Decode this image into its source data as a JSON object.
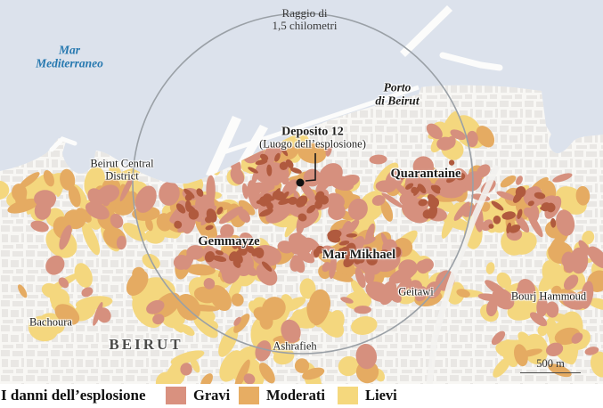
{
  "map": {
    "labels": {
      "sea_line1": "Mar",
      "sea_line2": "Mediterraneo",
      "radius_line1": "Raggio di",
      "radius_line2": "1,5 chilometri",
      "port_line1": "Porto",
      "port_line2": "di Beirut",
      "deposito_title": "Deposito 12",
      "deposito_sub": "(Luogo dell’esplosione)",
      "bcd_line1": "Beirut Central",
      "bcd_line2": "District",
      "quarantaine": "Quarantaine",
      "gemmayze": "Gemmayze",
      "mar_mikhael": "Mar Mikhael",
      "geitawi": "Geitawi",
      "bourj_hammoud": "Bourj Hammoud",
      "bachoura": "Bachoura",
      "city": "BEIRUT",
      "ashrafieh": "Ashrafieh"
    },
    "scale_label": "500 m",
    "colors": {
      "sea": "#dce2ec",
      "land": "#f8f7f4",
      "blocks": "#e4e2de",
      "circle": "#9aa0a6",
      "sea-label": "#2779b0",
      "gravi": "#d6907e",
      "moderati": "#e5ab62",
      "lievi": "#f4d77e",
      "dark": "#b05a3e"
    }
  },
  "legend": {
    "title": "I danni dell’esplosione",
    "items": [
      {
        "label": "Gravi",
        "color": "#d9917f"
      },
      {
        "label": "Moderati",
        "color": "#e7ad63"
      },
      {
        "label": "Lievi",
        "color": "#f5d87d"
      }
    ]
  }
}
